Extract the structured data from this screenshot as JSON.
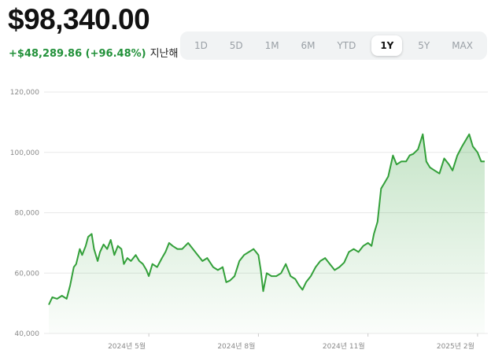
{
  "header": {
    "price": "$98,340.00",
    "change": "+$48,289.86 (+96.48%)",
    "change_suffix": "지난해"
  },
  "ranges": [
    "1D",
    "5D",
    "1M",
    "6M",
    "YTD",
    "1Y",
    "5Y",
    "MAX"
  ],
  "active_range": "1Y",
  "colors": {
    "line": "#33a03a",
    "positive_text": "#22913a"
  },
  "chart_data": {
    "type": "area",
    "title": "",
    "xlabel": "",
    "ylabel": "",
    "ylim": [
      40000,
      120000
    ],
    "yticks": [
      40000,
      60000,
      80000,
      100000,
      120000
    ],
    "ytick_labels": [
      "40,000",
      "60,000",
      "80,000",
      "100,000",
      "120,000"
    ],
    "xtick_labels": [
      "2024년 5월",
      "2024년 8월",
      "2024년 11월",
      "2025년 2월"
    ],
    "xticks": [
      "2024-05-01",
      "2024-08-01",
      "2024-11-01",
      "2025-02-01"
    ],
    "xlim": [
      "2024-02-07",
      "2025-02-07"
    ],
    "grid": true,
    "series": [
      {
        "x": [
          "2024-02-07",
          "2024-02-10",
          "2024-02-14",
          "2024-02-18",
          "2024-02-22",
          "2024-02-25",
          "2024-02-28",
          "2024-03-01",
          "2024-03-04",
          "2024-03-06",
          "2024-03-09",
          "2024-03-11",
          "2024-03-14",
          "2024-03-16",
          "2024-03-19",
          "2024-03-21",
          "2024-03-24",
          "2024-03-27",
          "2024-03-30",
          "2024-04-02",
          "2024-04-05",
          "2024-04-08",
          "2024-04-10",
          "2024-04-13",
          "2024-04-16",
          "2024-04-20",
          "2024-04-23",
          "2024-04-26",
          "2024-04-29",
          "2024-05-01",
          "2024-05-04",
          "2024-05-08",
          "2024-05-12",
          "2024-05-15",
          "2024-05-18",
          "2024-05-21",
          "2024-05-25",
          "2024-05-29",
          "2024-06-03",
          "2024-06-07",
          "2024-06-11",
          "2024-06-15",
          "2024-06-19",
          "2024-06-24",
          "2024-06-28",
          "2024-07-02",
          "2024-07-05",
          "2024-07-08",
          "2024-07-12",
          "2024-07-16",
          "2024-07-20",
          "2024-07-24",
          "2024-07-28",
          "2024-08-01",
          "2024-08-03",
          "2024-08-05",
          "2024-08-08",
          "2024-08-12",
          "2024-08-16",
          "2024-08-20",
          "2024-08-24",
          "2024-08-28",
          "2024-09-01",
          "2024-09-04",
          "2024-09-07",
          "2024-09-10",
          "2024-09-14",
          "2024-09-18",
          "2024-09-22",
          "2024-09-26",
          "2024-09-30",
          "2024-10-04",
          "2024-10-08",
          "2024-10-12",
          "2024-10-16",
          "2024-10-20",
          "2024-10-24",
          "2024-10-28",
          "2024-11-01",
          "2024-11-04",
          "2024-11-06",
          "2024-11-09",
          "2024-11-12",
          "2024-11-15",
          "2024-11-18",
          "2024-11-22",
          "2024-11-25",
          "2024-11-29",
          "2024-12-03",
          "2024-12-06",
          "2024-12-09",
          "2024-12-13",
          "2024-12-17",
          "2024-12-20",
          "2024-12-23",
          "2024-12-27",
          "2024-12-31",
          "2025-01-04",
          "2025-01-08",
          "2025-01-11",
          "2025-01-15",
          "2025-01-19",
          "2025-01-22",
          "2025-01-25",
          "2025-01-28",
          "2025-02-01",
          "2025-02-04",
          "2025-02-07"
        ],
        "values": [
          49500,
          52000,
          51500,
          52500,
          51500,
          56000,
          62000,
          63000,
          68000,
          66000,
          69000,
          72000,
          73000,
          68000,
          64000,
          67000,
          69500,
          68000,
          71000,
          66000,
          69000,
          68000,
          63000,
          65000,
          64000,
          66000,
          64000,
          63000,
          61000,
          59000,
          63000,
          62000,
          65000,
          67000,
          70000,
          69000,
          68000,
          68000,
          70000,
          68000,
          66000,
          64000,
          65000,
          62000,
          61000,
          62000,
          57000,
          57500,
          59000,
          64000,
          66000,
          67000,
          68000,
          66000,
          61000,
          54000,
          60000,
          59000,
          59000,
          60000,
          63000,
          59000,
          58000,
          56000,
          54500,
          57000,
          59000,
          62000,
          64000,
          65000,
          63000,
          61000,
          62000,
          63500,
          67000,
          68000,
          67000,
          69000,
          70000,
          69000,
          73000,
          77000,
          88000,
          90000,
          92000,
          99000,
          96000,
          97000,
          97000,
          99000,
          99500,
          101000,
          106000,
          97000,
          95000,
          94000,
          93000,
          98000,
          96000,
          94000,
          99000,
          102000,
          104000,
          106000,
          102000,
          100000,
          97000,
          97000
        ]
      }
    ]
  }
}
